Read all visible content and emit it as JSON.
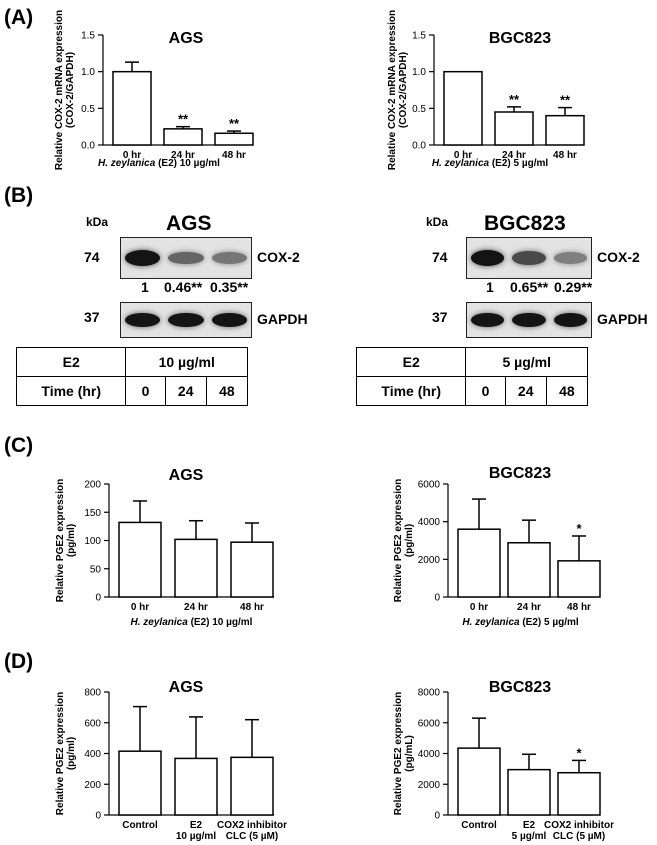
{
  "panels": {
    "A": "(A)",
    "B": "(B)",
    "C": "(C)",
    "D": "(D)"
  },
  "colors": {
    "bar_fill": "#ffffff",
    "stroke": "#000000"
  },
  "chart_data": [
    {
      "id": "A_AGS",
      "type": "bar",
      "title": "AGS",
      "ylabel": [
        "Relative COX-2 mRNA expression",
        "(COX-2/GAPDH)"
      ],
      "xlabel": [
        {
          "text": "H. zeylanica",
          "italic": true
        },
        {
          "text": " (E2) 10 µg/ml",
          "italic": false
        }
      ],
      "categories": [
        [
          "0 hr"
        ],
        [
          "24 hr"
        ],
        [
          "48 hr"
        ]
      ],
      "ylim": [
        0,
        1.5
      ],
      "yticks": [
        0.0,
        0.5,
        1.0,
        1.5
      ],
      "ytick_labels": [
        "0.0",
        "0.5",
        "1.0",
        "1.5"
      ],
      "values": [
        1.0,
        0.22,
        0.16
      ],
      "errors": [
        0.13,
        0.03,
        0.03
      ],
      "significance": [
        "",
        "**",
        "**"
      ]
    },
    {
      "id": "A_BGC823",
      "type": "bar",
      "title": "BGC823",
      "ylabel": [
        "Relative COX-2 mRNA expression",
        "(COX-2/GAPDH)"
      ],
      "xlabel": [
        {
          "text": "H. zeylanica",
          "italic": true
        },
        {
          "text": " (E2) 5 µg/ml",
          "italic": false
        }
      ],
      "categories": [
        [
          "0 hr"
        ],
        [
          "24 hr"
        ],
        [
          "48 hr"
        ]
      ],
      "ylim": [
        0,
        1.5
      ],
      "yticks": [
        0.0,
        0.5,
        1.0,
        1.5
      ],
      "ytick_labels": [
        "0.0",
        "0.5",
        "1.0",
        "1.5"
      ],
      "values": [
        1.0,
        0.45,
        0.4
      ],
      "errors": [
        0.0,
        0.07,
        0.11
      ],
      "significance": [
        "",
        "**",
        "**"
      ]
    },
    {
      "id": "C_AGS",
      "type": "bar",
      "title": "AGS",
      "ylabel": [
        "Relative PGE2 expression",
        "(pg/ml)"
      ],
      "xlabel": [
        {
          "text": "H. zeylanica",
          "italic": true
        },
        {
          "text": " (E2) 10 µg/ml",
          "italic": false
        }
      ],
      "categories": [
        [
          "0 hr"
        ],
        [
          "24 hr"
        ],
        [
          "48 hr"
        ]
      ],
      "ylim": [
        0,
        200
      ],
      "yticks": [
        0,
        50,
        100,
        150,
        200
      ],
      "ytick_labels": [
        "0",
        "50",
        "100",
        "150",
        "200"
      ],
      "values": [
        132,
        102,
        97
      ],
      "errors": [
        38,
        33,
        34
      ],
      "significance": [
        "",
        "",
        ""
      ]
    },
    {
      "id": "C_BGC823",
      "type": "bar",
      "title": "BGC823",
      "ylabel": [
        "Relative PGE2 expression",
        "(pg/ml)"
      ],
      "xlabel": [
        {
          "text": "H. zeylanica",
          "italic": true
        },
        {
          "text": " (E2) 5 µg/ml",
          "italic": false
        }
      ],
      "categories": [
        [
          "0 hr"
        ],
        [
          "24 hr"
        ],
        [
          "48 hr"
        ]
      ],
      "ylim": [
        0,
        6000
      ],
      "yticks": [
        0,
        2000,
        4000,
        6000
      ],
      "ytick_labels": [
        "0",
        "2000",
        "4000",
        "6000"
      ],
      "values": [
        3600,
        2880,
        1920
      ],
      "errors": [
        1600,
        1200,
        1320
      ],
      "significance": [
        "",
        "",
        "*"
      ]
    },
    {
      "id": "D_AGS",
      "type": "bar",
      "title": "AGS",
      "ylabel": [
        "Relative PGE2 expression",
        "(pg/ml)"
      ],
      "xlabel": [],
      "categories": [
        [
          "Control"
        ],
        [
          "E2",
          "10 µg/ml"
        ],
        [
          "COX2 inhibitor",
          "CLC (5 µM)"
        ]
      ],
      "ylim": [
        0,
        800
      ],
      "yticks": [
        0,
        200,
        400,
        600,
        800
      ],
      "ytick_labels": [
        "0",
        "200",
        "400",
        "600",
        "800"
      ],
      "values": [
        415,
        368,
        375
      ],
      "errors": [
        290,
        270,
        245
      ],
      "significance": [
        "",
        "",
        ""
      ]
    },
    {
      "id": "D_BGC823",
      "type": "bar",
      "title": "BGC823",
      "ylabel": [
        "Relative PGE2 expression",
        "(pg/mL)"
      ],
      "xlabel": [],
      "categories": [
        [
          "Control"
        ],
        [
          "E2",
          "5 µg/ml"
        ],
        [
          "COX2 inhibitor",
          "CLC (5 µM)"
        ]
      ],
      "ylim": [
        0,
        8000
      ],
      "yticks": [
        0,
        2000,
        4000,
        6000,
        8000
      ],
      "ytick_labels": [
        "0",
        "2000",
        "4000",
        "6000",
        "8000"
      ],
      "values": [
        4350,
        2950,
        2750
      ],
      "errors": [
        1950,
        1000,
        800
      ],
      "significance": [
        "",
        "",
        "*"
      ]
    }
  ],
  "western": {
    "left": {
      "title": "AGS",
      "kda": "kDa",
      "mw_top": "74",
      "mw_bottom": "37",
      "cox2_label": "COX-2",
      "gapdh_label": "GAPDH",
      "quant": [
        "1",
        "0.46",
        "0.35"
      ],
      "quant_sig": [
        "",
        "**",
        "**"
      ],
      "cox2_intensity": [
        1.0,
        0.46,
        0.35
      ],
      "table": {
        "row1_label": "E2",
        "row1_value": "10 µg/ml",
        "row2_label": "Time (hr)",
        "times": [
          "0",
          "24",
          "48"
        ]
      }
    },
    "right": {
      "title": "BGC823",
      "kda": "kDa",
      "mw_top": "74",
      "mw_bottom": "37",
      "cox2_label": "COX-2",
      "gapdh_label": "GAPDH",
      "quant": [
        "1",
        "0.65",
        "0.29"
      ],
      "quant_sig": [
        "",
        "**",
        "**"
      ],
      "cox2_intensity": [
        1.0,
        0.65,
        0.29
      ],
      "table": {
        "row1_label": "E2",
        "row1_value": "5 µg/ml",
        "row2_label": "Time (hr)",
        "times": [
          "0",
          "24",
          "48"
        ]
      }
    }
  }
}
